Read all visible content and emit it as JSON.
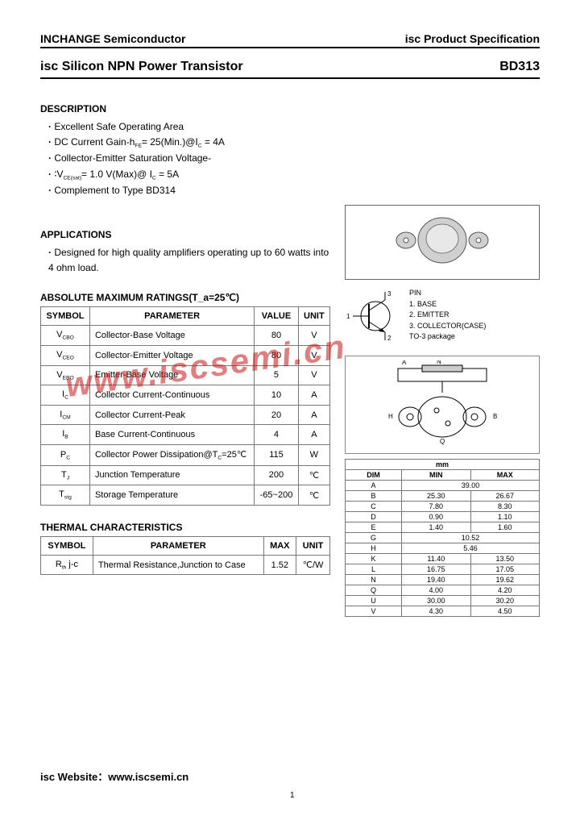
{
  "header": {
    "left": "INCHANGE Semiconductor",
    "right": "isc Product Specification"
  },
  "title": {
    "left": "isc Silicon NPN Power Transistor",
    "right": "BD313"
  },
  "desc": {
    "h": "DESCRIPTION",
    "items": [
      "Excellent Safe Operating Area",
      "DC Current Gain-h_FE= 25(Min.)@I_C = 4A",
      "Collector-Emitter Saturation Voltage-",
      "∶V_CE(sat)= 1.0 V(Max)@ I_C = 5A",
      "Complement to Type BD314"
    ]
  },
  "apps": {
    "h": "APPLICATIONS",
    "items": [
      "Designed for high quality amplifiers operating up to 60 watts into 4 ohm load."
    ]
  },
  "amr": {
    "h": "ABSOLUTE MAXIMUM RATINGS(T_a=25℃)",
    "cols": [
      "SYMBOL",
      "PARAMETER",
      "VALUE",
      "UNIT"
    ],
    "rows": [
      [
        "V_CBO",
        "Collector-Base Voltage",
        "80",
        "V"
      ],
      [
        "V_CEO",
        "Collector-Emitter Voltage",
        "80",
        "V"
      ],
      [
        "V_EBO",
        "Emitter-Base Voltage",
        "5",
        "V"
      ],
      [
        "I_C",
        "Collector Current-Continuous",
        "10",
        "A"
      ],
      [
        "I_CM",
        "Collector Current-Peak",
        "20",
        "A"
      ],
      [
        "I_B",
        "Base Current-Continuous",
        "4",
        "A"
      ],
      [
        "P_C",
        "Collector Power Dissipation@T_C=25℃",
        "115",
        "W"
      ],
      [
        "T_J",
        "Junction Temperature",
        "200",
        "℃"
      ],
      [
        "T_stg",
        "Storage Temperature",
        "-65~200",
        "℃"
      ]
    ]
  },
  "thermal": {
    "h": "THERMAL CHARACTERISTICS",
    "cols": [
      "SYMBOL",
      "PARAMETER",
      "MAX",
      "UNIT"
    ],
    "rows": [
      [
        "R_th j-c",
        "Thermal Resistance,Junction to Case",
        "1.52",
        "℃/W"
      ]
    ]
  },
  "pins": {
    "h": "PIN",
    "items": [
      "1. BASE",
      "2. EMITTER",
      "3. COLLECTOR(CASE)",
      "TO-3 package"
    ]
  },
  "dims": {
    "unit": "mm",
    "cols": [
      "DIM",
      "MIN",
      "MAX"
    ],
    "rows": [
      [
        "A",
        "39.00",
        ""
      ],
      [
        "B",
        "25.30",
        "26.67"
      ],
      [
        "C",
        "7.80",
        "8.30"
      ],
      [
        "D",
        "0.90",
        "1.10"
      ],
      [
        "E",
        "1.40",
        "1.60"
      ],
      [
        "G",
        "10.52",
        ""
      ],
      [
        "H",
        "5.46",
        ""
      ],
      [
        "K",
        "11.40",
        "13.50"
      ],
      [
        "L",
        "16.75",
        "17.05"
      ],
      [
        "N",
        "19.40",
        "19.62"
      ],
      [
        "Q",
        "4.00",
        "4.20"
      ],
      [
        "U",
        "30.00",
        "30.20"
      ],
      [
        "V",
        "4.30",
        "4.50"
      ]
    ]
  },
  "watermark": "www.iscsemi.cn",
  "footer": "isc Website：www.iscsemi.cn",
  "pagenum": "1",
  "colors": {
    "border": "#777",
    "wm": "rgba(200,20,20,0.55)"
  }
}
